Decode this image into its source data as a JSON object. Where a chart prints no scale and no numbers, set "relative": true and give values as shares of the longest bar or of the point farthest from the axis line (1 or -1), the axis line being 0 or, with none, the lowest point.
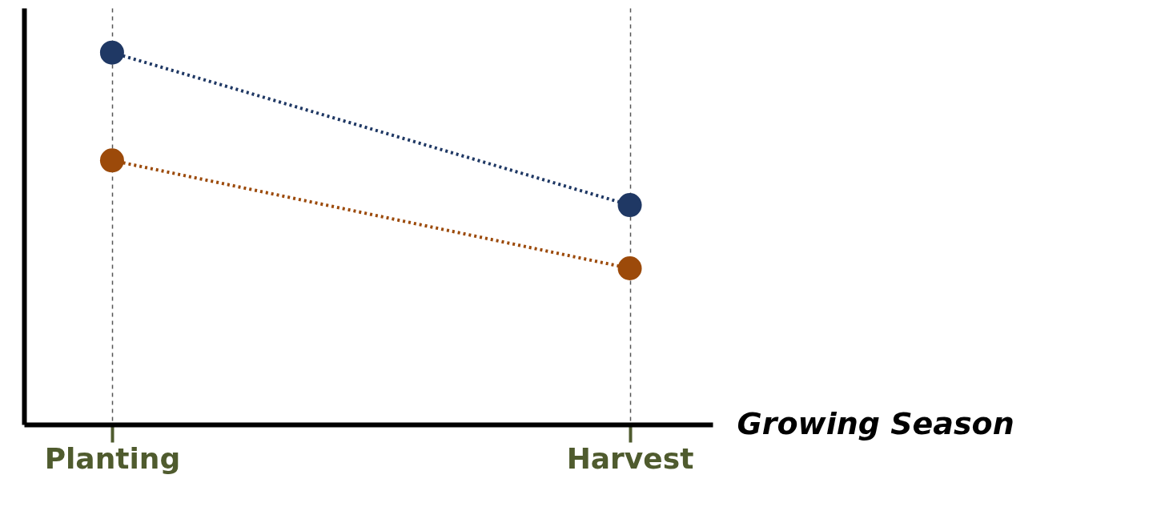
{
  "chart_data": {
    "type": "line",
    "xlabel": "Growing Season",
    "categories": [
      "Planting",
      "Harvest"
    ],
    "relative": true,
    "marker": "circle",
    "line_style": "dotted",
    "grid": "x",
    "legend": false,
    "series": [
      {
        "color": "#1f3864",
        "values": [
          1,
          0.59
        ]
      },
      {
        "color": "#9c4a0a",
        "values": [
          0.71,
          0.42
        ]
      }
    ]
  }
}
